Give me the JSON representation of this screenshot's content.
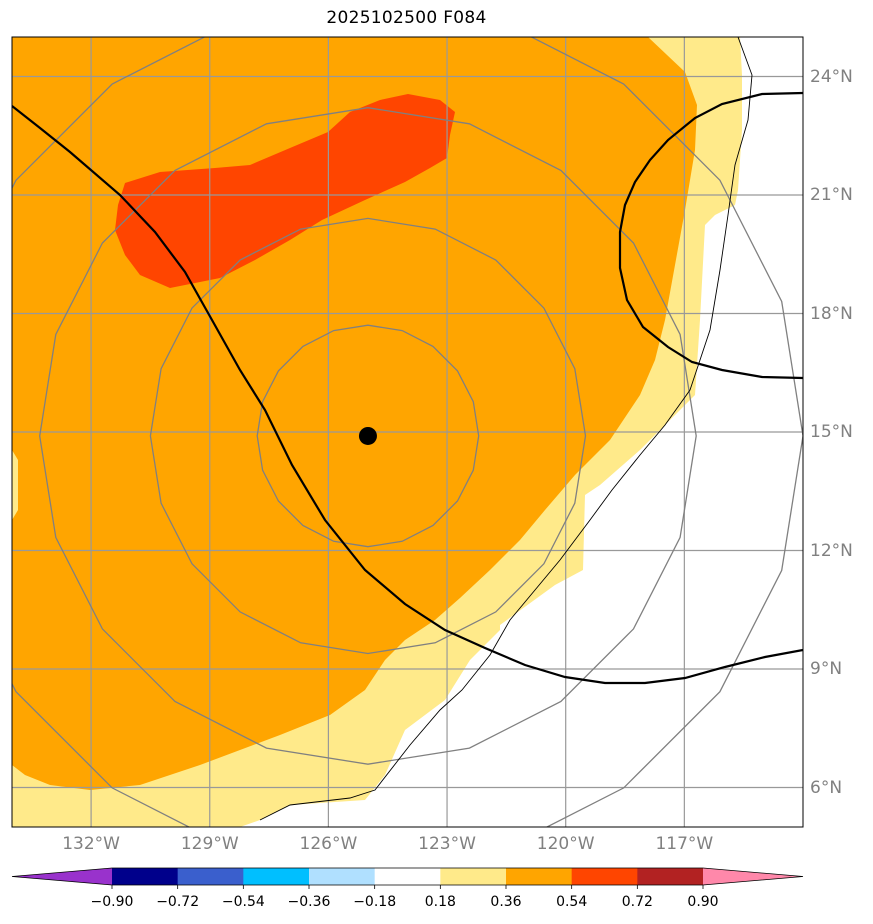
{
  "title": "2025102500 F084",
  "map": {
    "lon_range": [
      -134.0,
      -114.0
    ],
    "lat_range": [
      5.0,
      25.0
    ],
    "grid_lons": [
      -132,
      -129,
      -126,
      -123,
      -120,
      -117
    ],
    "grid_lats": [
      6,
      9,
      12,
      15,
      18,
      21,
      24
    ],
    "lon_labels": [
      "132°W",
      "129°W",
      "126°W",
      "123°W",
      "120°W",
      "117°W"
    ],
    "lat_labels": [
      "6°N",
      "9°N",
      "12°N",
      "15°N",
      "18°N",
      "21°N",
      "24°N"
    ],
    "center_marker": {
      "lon": -125.0,
      "lat": 14.9
    },
    "range_rings_deg": [
      2.8,
      5.5,
      8.3,
      11.0
    ]
  },
  "colorbar": {
    "levels": [
      -0.9,
      -0.72,
      -0.54,
      -0.36,
      -0.18,
      0.18,
      0.36,
      0.54,
      0.72,
      0.9
    ],
    "labels": [
      "−0.90",
      "−0.72",
      "−0.54",
      "−0.36",
      "−0.18",
      "0.18",
      "0.36",
      "0.54",
      "0.72",
      "0.90"
    ],
    "colors": [
      "#9932cc",
      "#00008b",
      "#3a5fcd",
      "#00bfff",
      "#b0e0ff",
      "#ffffff",
      "#ffea8a",
      "#ffa500",
      "#ff4500",
      "#b22222",
      "#ff88aa"
    ],
    "extend": "both"
  },
  "colors": {
    "fill_018_036": "#ffea8a",
    "fill_036_054": "#ffa500",
    "fill_054_072": "#ff4500",
    "grid": "#999999",
    "rings": "#808080",
    "contour": "#000000"
  }
}
